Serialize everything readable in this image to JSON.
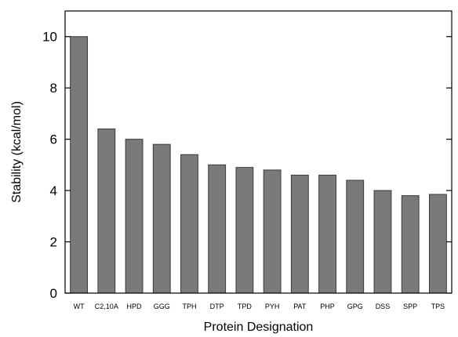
{
  "chart_data": {
    "type": "bar",
    "xlabel": "Protein Designation",
    "ylabel": "Stability (kcal/mol)",
    "ylim": [
      0,
      11
    ],
    "yticks": [
      0,
      2,
      4,
      6,
      8,
      10
    ],
    "grid": false,
    "bar_color": "#7a7a7a",
    "categories": [
      "WT",
      "C2,10A",
      "HPD",
      "GGG",
      "TPH",
      "DTP",
      "TPD",
      "PYH",
      "PAT",
      "PHP",
      "GPG",
      "DSS",
      "SPP",
      "TPS"
    ],
    "values": [
      10.0,
      6.4,
      6.0,
      5.8,
      5.4,
      5.0,
      4.9,
      4.8,
      4.6,
      4.6,
      4.4,
      4.0,
      3.8,
      3.85
    ]
  }
}
